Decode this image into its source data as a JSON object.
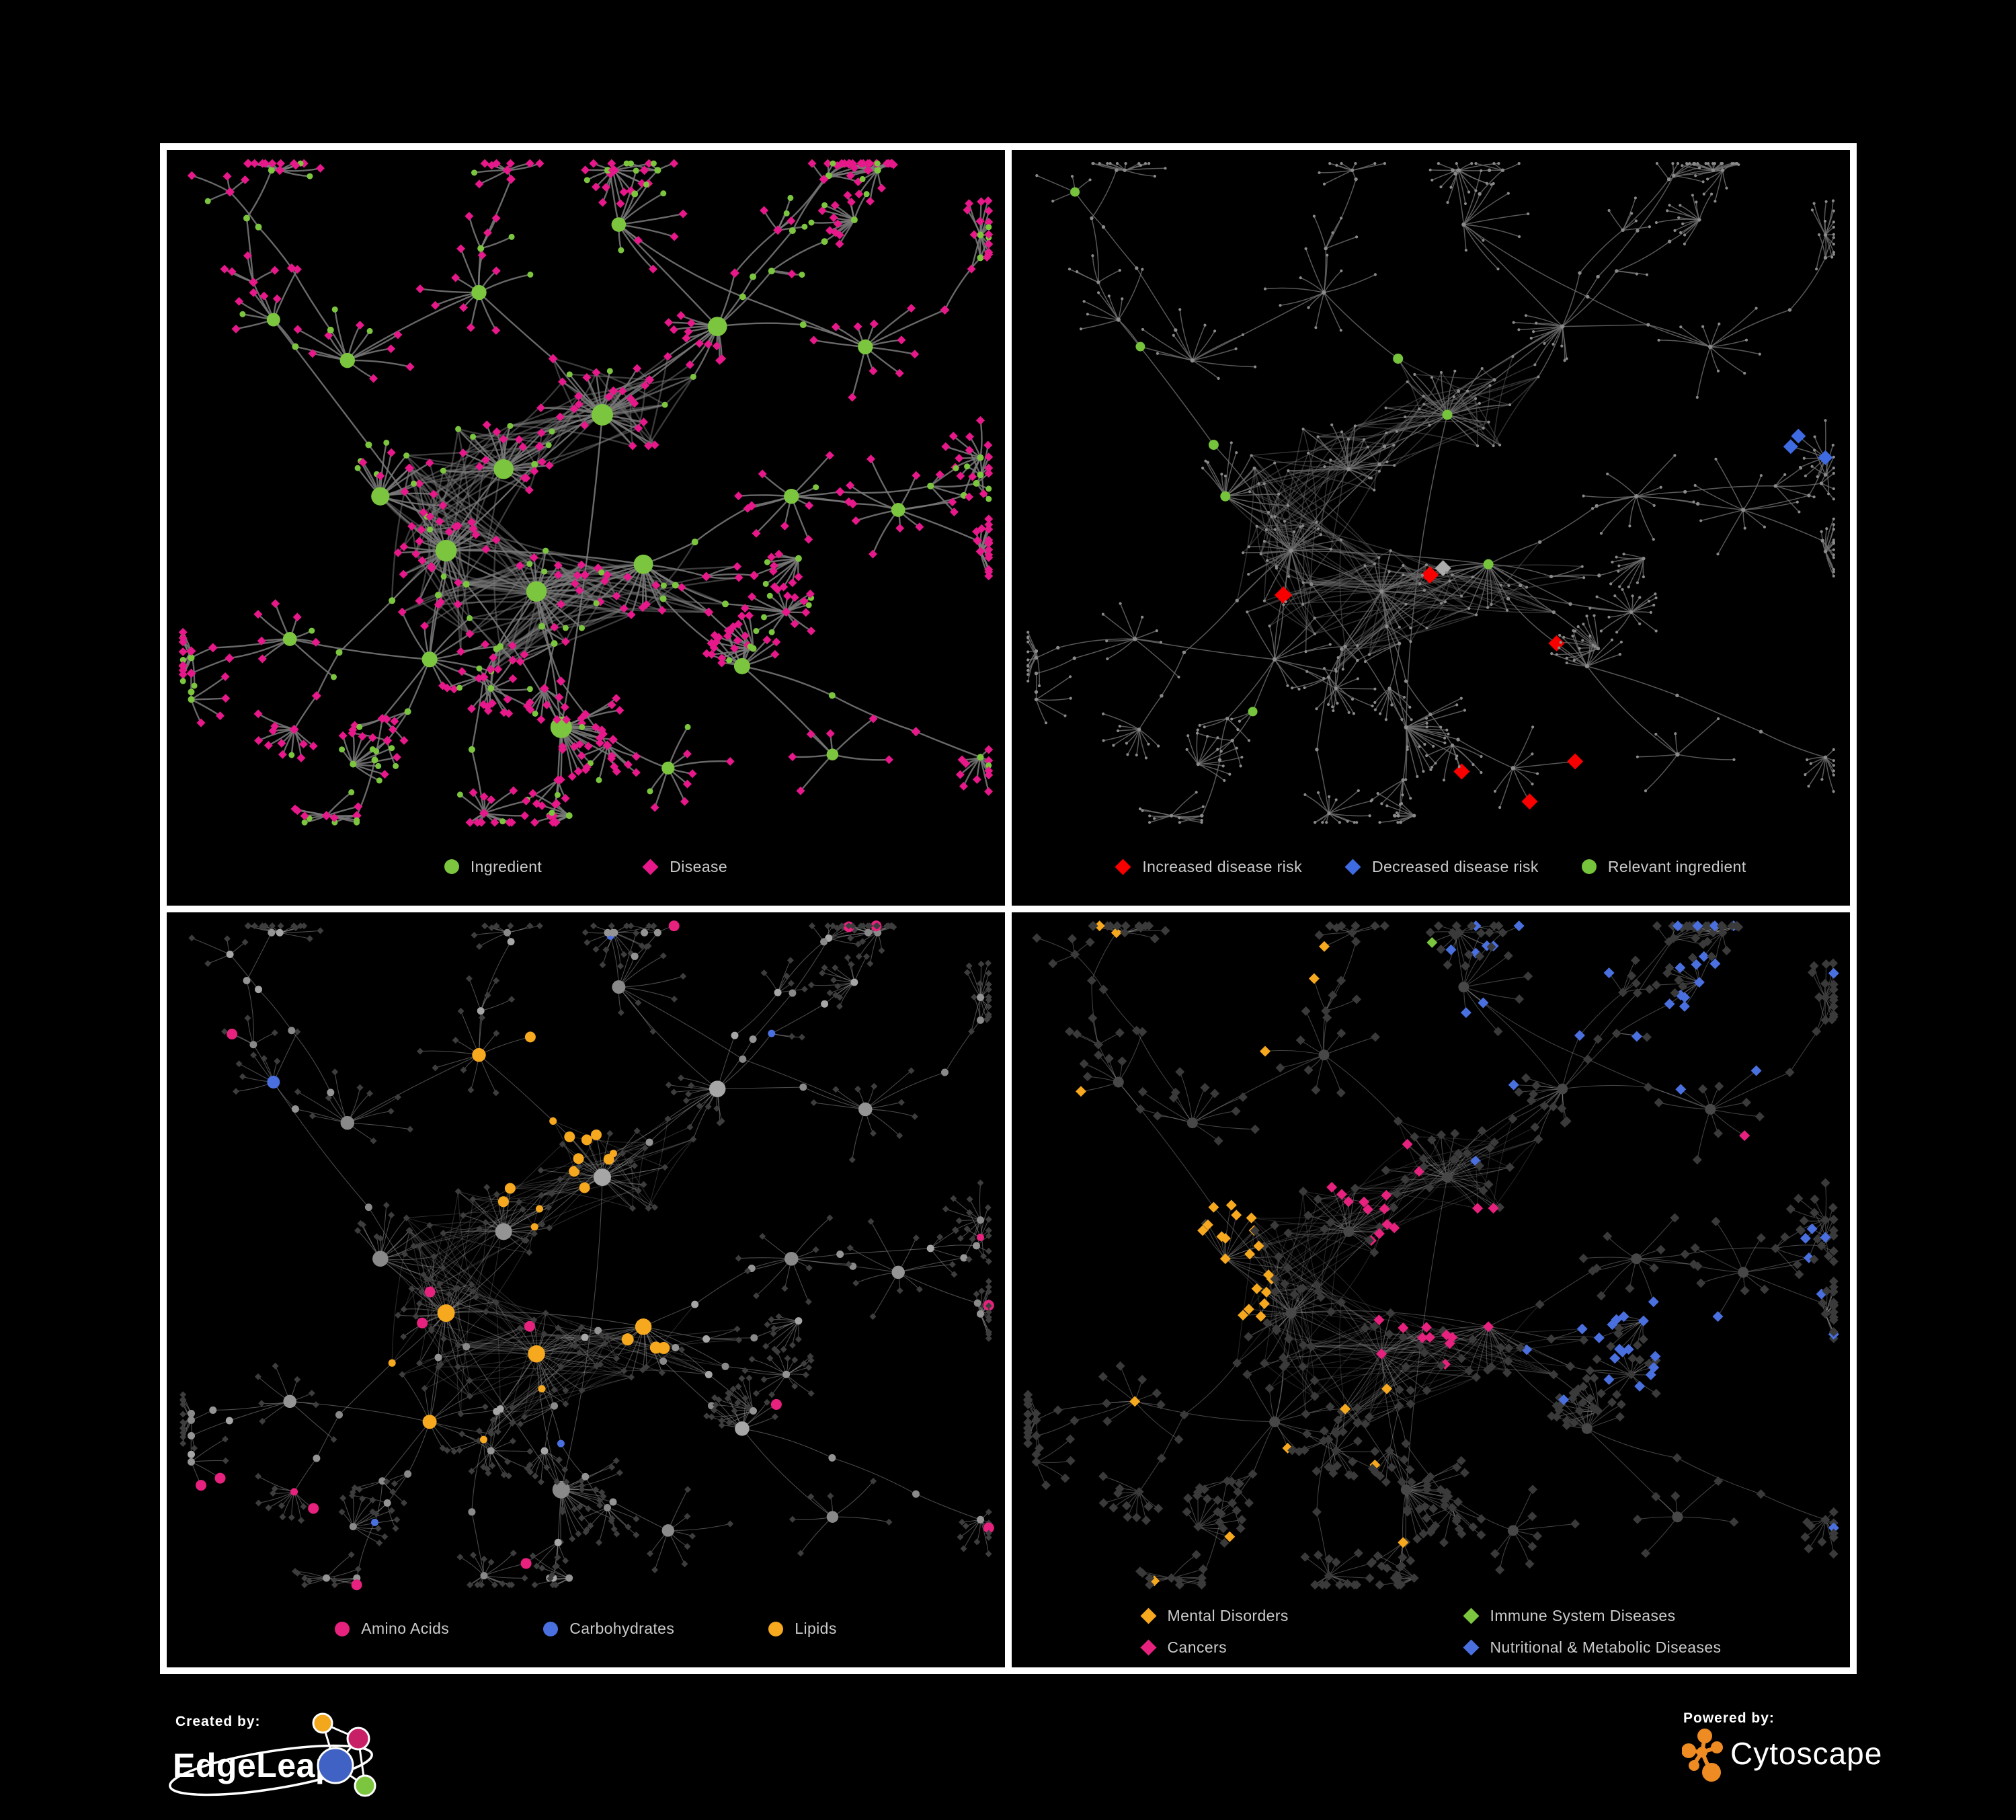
{
  "figure": {
    "background": "#000000",
    "grid_line_color": "#FFFFFF",
    "panel_background": "#000000",
    "legend_text_color": "#CBCBCB"
  },
  "panels": [
    {
      "id": "ingredient-disease",
      "legend": {
        "items": [
          {
            "label": "Ingredient",
            "shape": "circle",
            "color": "#7CC63F"
          },
          {
            "label": "Disease",
            "shape": "diamond",
            "color": "#E6188A"
          }
        ]
      },
      "net": {
        "edge": {
          "color": "#7B7B7B",
          "width": 2.4,
          "opacity": 0.85
        },
        "palette": {
          "green": "#7CC63F",
          "pink": "#E6188A"
        }
      }
    },
    {
      "id": "disease-risk",
      "legend": {
        "items": [
          {
            "label": "Increased disease risk",
            "shape": "diamond",
            "color": "#F80000"
          },
          {
            "label": "Decreased disease risk",
            "shape": "diamond",
            "color": "#3E6BE2"
          },
          {
            "label": "Relevant ingredient",
            "shape": "circle",
            "color": "#76C33C"
          }
        ]
      },
      "net": {
        "edge": {
          "color": "#6E6E6E",
          "width": 1.5,
          "opacity": 0.8
        },
        "palette": {
          "base": "#8A8A8A",
          "red": "#F80000",
          "blue": "#3E6BE2",
          "silver": "#ABABAB",
          "green": "#76C33C"
        }
      }
    },
    {
      "id": "macronutrients",
      "legend": {
        "items": [
          {
            "label": "Amino Acids",
            "shape": "circle",
            "color": "#E7217E"
          },
          {
            "label": "Carbohydrates",
            "shape": "circle",
            "color": "#4A6FDF"
          },
          {
            "label": "Lipids",
            "shape": "circle",
            "color": "#F6A81F"
          }
        ]
      },
      "net": {
        "edge": {
          "color": "#949494",
          "width": 1.1,
          "opacity": 0.5
        },
        "palette": {
          "base": "#9C9C9C",
          "leaf": "#3D3D3D",
          "amino": "#E7217E",
          "carb": "#4A6FDF",
          "lipid": "#F6A81F"
        }
      }
    },
    {
      "id": "disease-classes",
      "legend": {
        "items": [
          {
            "label": "Mental Disorders",
            "shape": "diamond",
            "color": "#F6A81F"
          },
          {
            "label": "Immune System Diseases",
            "shape": "diamond",
            "color": "#7CC63F"
          },
          {
            "label": "Cancers",
            "shape": "diamond",
            "color": "#E7217E"
          },
          {
            "label": "Nutritional & Metabolic Diseases",
            "shape": "diamond",
            "color": "#4A6FDF"
          }
        ]
      },
      "net": {
        "edge": {
          "color": "#9A9A9A",
          "width": 1.1,
          "opacity": 0.42
        },
        "palette": {
          "base": "#3A3A3A",
          "hub": "#474747",
          "mental": "#F6A81F",
          "immune": "#7CC63F",
          "cancer": "#E7217E",
          "nutri": "#4A6FDF"
        }
      }
    }
  ],
  "footer": {
    "created_by_label": "Created by:",
    "created_by_brand": "EdgeLeap",
    "powered_by_label": "Powered by:",
    "powered_by_brand": "Cytoscape",
    "edgeleap_colors": {
      "orange": "#F2A71D",
      "magenta": "#C72067",
      "blue": "#3F62C4",
      "green": "#7CC63F"
    },
    "cytoscape_color": "#EE8B22"
  }
}
